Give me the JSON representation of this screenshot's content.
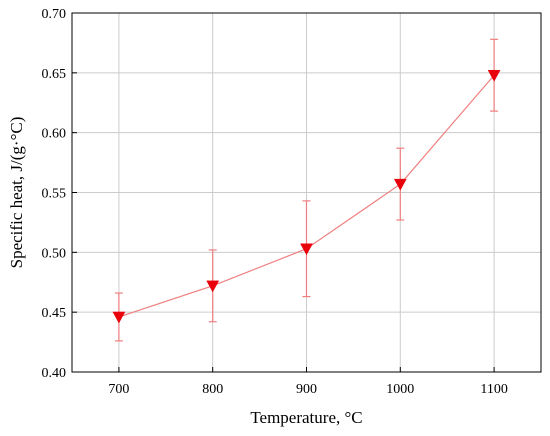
{
  "chart_data": {
    "type": "line",
    "xlabel": "Temperature, °C",
    "ylabel": "Specific heat, J/(g·°C)",
    "xlim": [
      650,
      1150
    ],
    "ylim": [
      0.4,
      0.7
    ],
    "x_ticks": [
      700,
      800,
      900,
      1000,
      1100
    ],
    "x_tick_labels": [
      "700",
      "800",
      "900",
      "1000",
      "1100"
    ],
    "y_ticks": [
      0.4,
      0.45,
      0.5,
      0.55,
      0.6,
      0.65,
      0.7
    ],
    "y_tick_labels": [
      "0.40",
      "0.45",
      "0.50",
      "0.55",
      "0.60",
      "0.65",
      "0.70"
    ],
    "grid": true,
    "series": [
      {
        "x": [
          700,
          800,
          900,
          1000,
          1100
        ],
        "y": [
          0.446,
          0.472,
          0.503,
          0.557,
          0.648
        ],
        "error_low": [
          0.426,
          0.442,
          0.463,
          0.527,
          0.618
        ],
        "error_high": [
          0.466,
          0.502,
          0.543,
          0.587,
          0.678
        ],
        "marker": "triangle-down",
        "color": "#e8000b",
        "line_color": "#ef7f7f"
      }
    ]
  }
}
